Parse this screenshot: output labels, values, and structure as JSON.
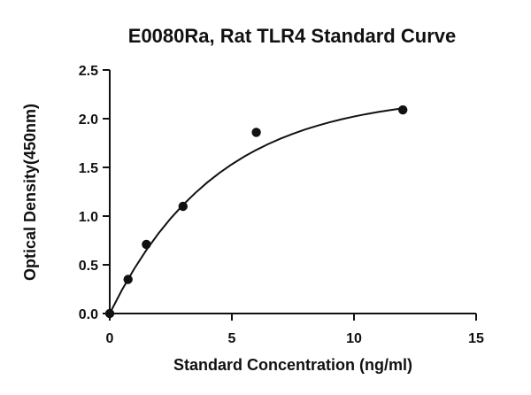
{
  "chart_data": {
    "type": "scatter",
    "title": "E0080Ra, Rat TLR4 Standard Curve",
    "xlabel": "Standard Concentration (ng/ml)",
    "ylabel": "Optical Density(450nm)",
    "xlim": [
      0,
      15
    ],
    "ylim": [
      0,
      2.5
    ],
    "x_ticks": [
      "0",
      "5",
      "10",
      "15"
    ],
    "y_ticks": [
      "0.0",
      "0.5",
      "1.0",
      "1.5",
      "2.0",
      "2.5"
    ],
    "grid": false,
    "legend": "none",
    "series": [
      {
        "x": [
          0,
          0.75,
          1.5,
          3,
          6,
          12
        ],
        "y": [
          0.0,
          0.35,
          0.71,
          1.1,
          1.86,
          2.09
        ]
      }
    ],
    "fit_curve": {
      "x": [
        0,
        0.5,
        1,
        1.5,
        2,
        2.5,
        3,
        3.5,
        4,
        4.5,
        5,
        5.5,
        6,
        6.5,
        7,
        7.5,
        8,
        8.5,
        9,
        9.5,
        10,
        10.5,
        11,
        11.5,
        12
      ],
      "y": [
        0.0,
        0.242,
        0.458,
        0.652,
        0.824,
        0.978,
        1.115,
        1.237,
        1.347,
        1.445,
        1.532,
        1.61,
        1.679,
        1.741,
        1.796,
        1.845,
        1.889,
        1.928,
        1.963,
        1.994,
        2.022,
        2.047,
        2.069,
        2.089,
        2.107
      ]
    },
    "colors": {
      "marks": "#111111",
      "background": "#ffffff"
    }
  }
}
